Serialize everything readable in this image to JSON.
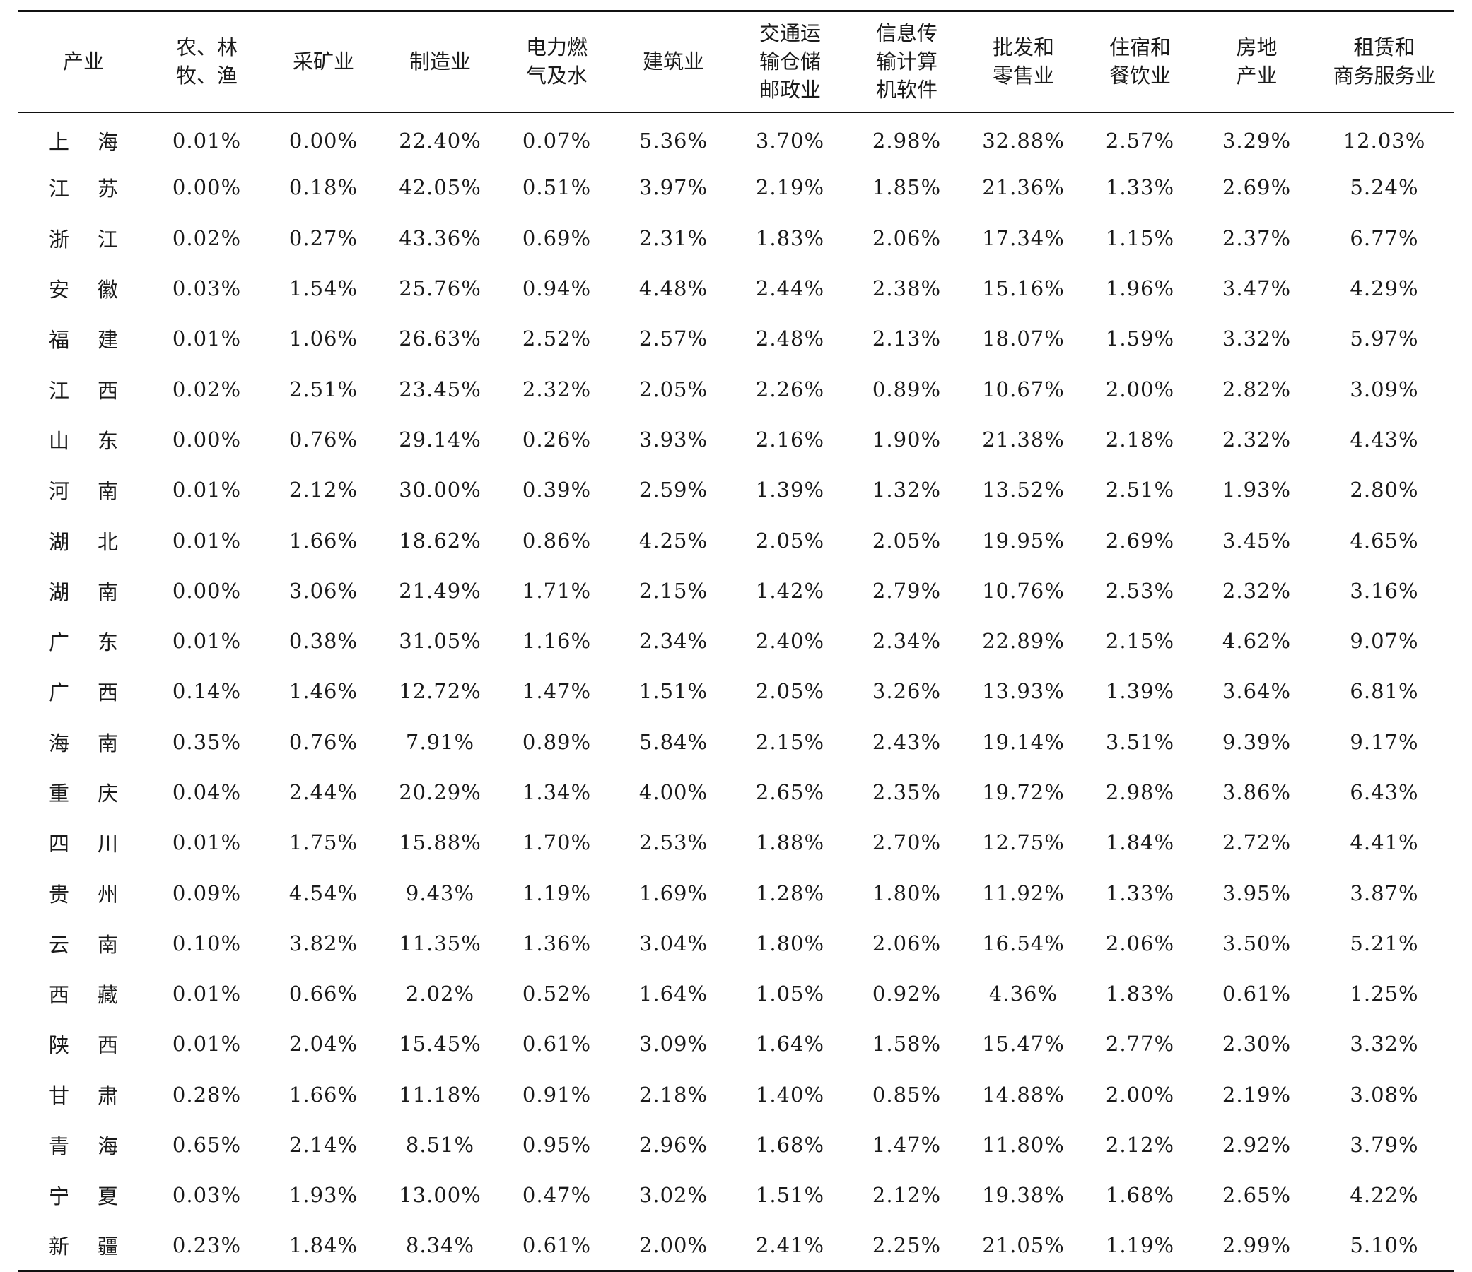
{
  "header": [
    [
      "产业"
    ],
    [
      "农、林",
      "牧、渔"
    ],
    [
      "采矿业"
    ],
    [
      "制造业"
    ],
    [
      "电力燃",
      "气及水"
    ],
    [
      "建筑业"
    ],
    [
      "交通运",
      "输仓储",
      "邮政业"
    ],
    [
      "信息传",
      "输计算",
      "机软件"
    ],
    [
      "批发和",
      "零售业"
    ],
    [
      "住宿和",
      "餐饮业"
    ],
    [
      "房地",
      "产业"
    ],
    [
      "租赁和",
      "商务服务业"
    ]
  ],
  "rows": [
    {
      "region": [
        "上",
        "海"
      ],
      "values": [
        "0.01%",
        "0.00%",
        "22.40%",
        "0.07%",
        "5.36%",
        "3.70%",
        "2.98%",
        "32.88%",
        "2.57%",
        "3.29%",
        "12.03%"
      ]
    },
    {
      "region": [
        "江",
        "苏"
      ],
      "values": [
        "0.00%",
        "0.18%",
        "42.05%",
        "0.51%",
        "3.97%",
        "2.19%",
        "1.85%",
        "21.36%",
        "1.33%",
        "2.69%",
        "5.24%"
      ]
    },
    {
      "region": [
        "浙",
        "江"
      ],
      "values": [
        "0.02%",
        "0.27%",
        "43.36%",
        "0.69%",
        "2.31%",
        "1.83%",
        "2.06%",
        "17.34%",
        "1.15%",
        "2.37%",
        "6.77%"
      ]
    },
    {
      "region": [
        "安",
        "徽"
      ],
      "values": [
        "0.03%",
        "1.54%",
        "25.76%",
        "0.94%",
        "4.48%",
        "2.44%",
        "2.38%",
        "15.16%",
        "1.96%",
        "3.47%",
        "4.29%"
      ]
    },
    {
      "region": [
        "福",
        "建"
      ],
      "values": [
        "0.01%",
        "1.06%",
        "26.63%",
        "2.52%",
        "2.57%",
        "2.48%",
        "2.13%",
        "18.07%",
        "1.59%",
        "3.32%",
        "5.97%"
      ]
    },
    {
      "region": [
        "江",
        "西"
      ],
      "values": [
        "0.02%",
        "2.51%",
        "23.45%",
        "2.32%",
        "2.05%",
        "2.26%",
        "0.89%",
        "10.67%",
        "2.00%",
        "2.82%",
        "3.09%"
      ]
    },
    {
      "region": [
        "山",
        "东"
      ],
      "values": [
        "0.00%",
        "0.76%",
        "29.14%",
        "0.26%",
        "3.93%",
        "2.16%",
        "1.90%",
        "21.38%",
        "2.18%",
        "2.32%",
        "4.43%"
      ]
    },
    {
      "region": [
        "河",
        "南"
      ],
      "values": [
        "0.01%",
        "2.12%",
        "30.00%",
        "0.39%",
        "2.59%",
        "1.39%",
        "1.32%",
        "13.52%",
        "2.51%",
        "1.93%",
        "2.80%"
      ]
    },
    {
      "region": [
        "湖",
        "北"
      ],
      "values": [
        "0.01%",
        "1.66%",
        "18.62%",
        "0.86%",
        "4.25%",
        "2.05%",
        "2.05%",
        "19.95%",
        "2.69%",
        "3.45%",
        "4.65%"
      ]
    },
    {
      "region": [
        "湖",
        "南"
      ],
      "values": [
        "0.00%",
        "3.06%",
        "21.49%",
        "1.71%",
        "2.15%",
        "1.42%",
        "2.79%",
        "10.76%",
        "2.53%",
        "2.32%",
        "3.16%"
      ]
    },
    {
      "region": [
        "广",
        "东"
      ],
      "values": [
        "0.01%",
        "0.38%",
        "31.05%",
        "1.16%",
        "2.34%",
        "2.40%",
        "2.34%",
        "22.89%",
        "2.15%",
        "4.62%",
        "9.07%"
      ]
    },
    {
      "region": [
        "广",
        "西"
      ],
      "values": [
        "0.14%",
        "1.46%",
        "12.72%",
        "1.47%",
        "1.51%",
        "2.05%",
        "3.26%",
        "13.93%",
        "1.39%",
        "3.64%",
        "6.81%"
      ]
    },
    {
      "region": [
        "海",
        "南"
      ],
      "values": [
        "0.35%",
        "0.76%",
        "7.91%",
        "0.89%",
        "5.84%",
        "2.15%",
        "2.43%",
        "19.14%",
        "3.51%",
        "9.39%",
        "9.17%"
      ]
    },
    {
      "region": [
        "重",
        "庆"
      ],
      "values": [
        "0.04%",
        "2.44%",
        "20.29%",
        "1.34%",
        "4.00%",
        "2.65%",
        "2.35%",
        "19.72%",
        "2.98%",
        "3.86%",
        "6.43%"
      ]
    },
    {
      "region": [
        "四",
        "川"
      ],
      "values": [
        "0.01%",
        "1.75%",
        "15.88%",
        "1.70%",
        "2.53%",
        "1.88%",
        "2.70%",
        "12.75%",
        "1.84%",
        "2.72%",
        "4.41%"
      ]
    },
    {
      "region": [
        "贵",
        "州"
      ],
      "values": [
        "0.09%",
        "4.54%",
        "9.43%",
        "1.19%",
        "1.69%",
        "1.28%",
        "1.80%",
        "11.92%",
        "1.33%",
        "3.95%",
        "3.87%"
      ]
    },
    {
      "region": [
        "云",
        "南"
      ],
      "values": [
        "0.10%",
        "3.82%",
        "11.35%",
        "1.36%",
        "3.04%",
        "1.80%",
        "2.06%",
        "16.54%",
        "2.06%",
        "3.50%",
        "5.21%"
      ]
    },
    {
      "region": [
        "西",
        "藏"
      ],
      "values": [
        "0.01%",
        "0.66%",
        "2.02%",
        "0.52%",
        "1.64%",
        "1.05%",
        "0.92%",
        "4.36%",
        "1.83%",
        "0.61%",
        "1.25%"
      ]
    },
    {
      "region": [
        "陕",
        "西"
      ],
      "values": [
        "0.01%",
        "2.04%",
        "15.45%",
        "0.61%",
        "3.09%",
        "1.64%",
        "1.58%",
        "15.47%",
        "2.77%",
        "2.30%",
        "3.32%"
      ]
    },
    {
      "region": [
        "甘",
        "肃"
      ],
      "values": [
        "0.28%",
        "1.66%",
        "11.18%",
        "0.91%",
        "2.18%",
        "1.40%",
        "0.85%",
        "14.88%",
        "2.00%",
        "2.19%",
        "3.08%"
      ]
    },
    {
      "region": [
        "青",
        "海"
      ],
      "values": [
        "0.65%",
        "2.14%",
        "8.51%",
        "0.95%",
        "2.96%",
        "1.68%",
        "1.47%",
        "11.80%",
        "2.12%",
        "2.92%",
        "3.79%"
      ]
    },
    {
      "region": [
        "宁",
        "夏"
      ],
      "values": [
        "0.03%",
        "1.93%",
        "13.00%",
        "0.47%",
        "3.02%",
        "1.51%",
        "2.12%",
        "19.38%",
        "1.68%",
        "2.65%",
        "4.22%"
      ]
    },
    {
      "region": [
        "新",
        "疆"
      ],
      "values": [
        "0.23%",
        "1.84%",
        "8.34%",
        "0.61%",
        "2.00%",
        "2.41%",
        "2.25%",
        "21.05%",
        "1.19%",
        "2.99%",
        "5.10%"
      ]
    }
  ]
}
